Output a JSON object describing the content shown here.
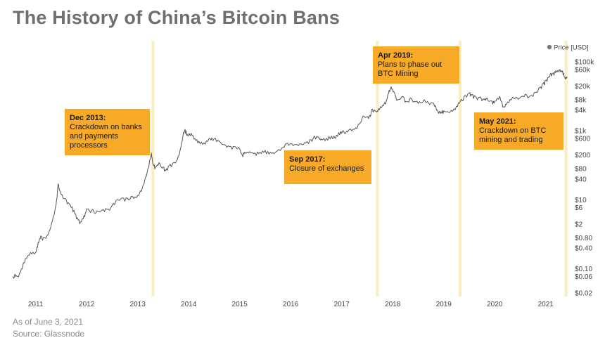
{
  "title": "The History of China’s Bitcoin Bans",
  "footnotes": {
    "as_of": "As of June 3, 2021",
    "source": "Source: Glassnode"
  },
  "colors": {
    "line": "#555555",
    "event_band": "#fbecc2",
    "annotation_bg": "#f7a928",
    "annotation_text": "#1a1a1a",
    "axis_text": "#444444",
    "title": "#6f6f6f",
    "legend_dot": "#777777"
  },
  "chart_data": {
    "type": "line",
    "title": "The History of China’s Bitcoin Bans",
    "xlabel": "",
    "ylabel": "Price [USD]",
    "yscale": "log",
    "xlim": [
      2010.55,
      2021.5
    ],
    "ylim": [
      0.02,
      100000
    ],
    "legend": {
      "label": "Price [USD]",
      "position": "top-right"
    },
    "x_ticks": [
      {
        "value": 2011,
        "label": "2011"
      },
      {
        "value": 2012,
        "label": "2012"
      },
      {
        "value": 2013,
        "label": "2013"
      },
      {
        "value": 2014,
        "label": "2014"
      },
      {
        "value": 2015,
        "label": "2015"
      },
      {
        "value": 2016,
        "label": "2016"
      },
      {
        "value": 2017,
        "label": "2017"
      },
      {
        "value": 2018,
        "label": "2018"
      },
      {
        "value": 2019,
        "label": "2019"
      },
      {
        "value": 2020,
        "label": "2020"
      },
      {
        "value": 2021,
        "label": "2021"
      }
    ],
    "y_ticks": [
      {
        "value": 100000,
        "label": "$100k"
      },
      {
        "value": 60000,
        "label": "$60k"
      },
      {
        "value": 20000,
        "label": "$20k"
      },
      {
        "value": 8000,
        "label": "$8k"
      },
      {
        "value": 4000,
        "label": "$4k"
      },
      {
        "value": 1000,
        "label": "$1k"
      },
      {
        "value": 600,
        "label": "$600"
      },
      {
        "value": 200,
        "label": "$200"
      },
      {
        "value": 80,
        "label": "$80"
      },
      {
        "value": 40,
        "label": "$40"
      },
      {
        "value": 10,
        "label": "$10"
      },
      {
        "value": 6,
        "label": "$6"
      },
      {
        "value": 2,
        "label": "$2"
      },
      {
        "value": 0.8,
        "label": "$0.80"
      },
      {
        "value": 0.4,
        "label": "$0.40"
      },
      {
        "value": 0.1,
        "label": "$0.10"
      },
      {
        "value": 0.06,
        "label": "$0.06"
      },
      {
        "value": 0.02,
        "label": "$0.02"
      }
    ],
    "series": [
      {
        "name": "Price [USD]",
        "points": [
          [
            2010.55,
            0.06
          ],
          [
            2010.6,
            0.07
          ],
          [
            2010.65,
            0.06
          ],
          [
            2010.72,
            0.1
          ],
          [
            2010.8,
            0.2
          ],
          [
            2010.9,
            0.3
          ],
          [
            2011.0,
            0.3
          ],
          [
            2011.05,
            0.6
          ],
          [
            2011.1,
            0.9
          ],
          [
            2011.15,
            0.8
          ],
          [
            2011.25,
            1.0
          ],
          [
            2011.33,
            2.5
          ],
          [
            2011.4,
            7.0
          ],
          [
            2011.44,
            29.0
          ],
          [
            2011.48,
            18.0
          ],
          [
            2011.52,
            14.0
          ],
          [
            2011.6,
            10.0
          ],
          [
            2011.68,
            7.0
          ],
          [
            2011.75,
            5.0
          ],
          [
            2011.82,
            3.0
          ],
          [
            2011.88,
            2.3
          ],
          [
            2011.95,
            3.5
          ],
          [
            2012.0,
            5.5
          ],
          [
            2012.1,
            5.0
          ],
          [
            2012.2,
            4.8
          ],
          [
            2012.3,
            5.0
          ],
          [
            2012.4,
            5.3
          ],
          [
            2012.5,
            6.8
          ],
          [
            2012.6,
            10.0
          ],
          [
            2012.7,
            11.5
          ],
          [
            2012.8,
            11.0
          ],
          [
            2012.9,
            12.5
          ],
          [
            2013.0,
            13.5
          ],
          [
            2013.1,
            25.0
          ],
          [
            2013.2,
            80.0
          ],
          [
            2013.27,
            230.0
          ],
          [
            2013.3,
            110.0
          ],
          [
            2013.35,
            90.0
          ],
          [
            2013.42,
            120.0
          ],
          [
            2013.5,
            90.0
          ],
          [
            2013.55,
            70.0
          ],
          [
            2013.62,
            100.0
          ],
          [
            2013.7,
            120.0
          ],
          [
            2013.78,
            150.0
          ],
          [
            2013.85,
            350.0
          ],
          [
            2013.9,
            900.0
          ],
          [
            2013.93,
            1100.0
          ],
          [
            2013.97,
            800.0
          ],
          [
            2014.05,
            850.0
          ],
          [
            2014.12,
            600.0
          ],
          [
            2014.2,
            500.0
          ],
          [
            2014.3,
            450.0
          ],
          [
            2014.4,
            600.0
          ],
          [
            2014.45,
            620.0
          ],
          [
            2014.5,
            600.0
          ],
          [
            2014.6,
            500.0
          ],
          [
            2014.7,
            400.0
          ],
          [
            2014.8,
            350.0
          ],
          [
            2014.9,
            350.0
          ],
          [
            2015.0,
            300.0
          ],
          [
            2015.05,
            200.0
          ],
          [
            2015.1,
            240.0
          ],
          [
            2015.2,
            250.0
          ],
          [
            2015.3,
            230.0
          ],
          [
            2015.4,
            240.0
          ],
          [
            2015.5,
            270.0
          ],
          [
            2015.6,
            240.0
          ],
          [
            2015.7,
            240.0
          ],
          [
            2015.83,
            320.0
          ],
          [
            2015.92,
            430.0
          ],
          [
            2016.0,
            430.0
          ],
          [
            2016.1,
            400.0
          ],
          [
            2016.2,
            420.0
          ],
          [
            2016.3,
            450.0
          ],
          [
            2016.4,
            550.0
          ],
          [
            2016.47,
            700.0
          ],
          [
            2016.55,
            650.0
          ],
          [
            2016.6,
            580.0
          ],
          [
            2016.7,
            610.0
          ],
          [
            2016.8,
            700.0
          ],
          [
            2016.9,
            750.0
          ],
          [
            2016.98,
            950.0
          ],
          [
            2017.02,
            1000.0
          ],
          [
            2017.08,
            900.0
          ],
          [
            2017.15,
            1100.0
          ],
          [
            2017.25,
            1100.0
          ],
          [
            2017.35,
            1600.0
          ],
          [
            2017.42,
            2700.0
          ],
          [
            2017.5,
            2500.0
          ],
          [
            2017.55,
            2800.0
          ],
          [
            2017.6,
            4300.0
          ],
          [
            2017.68,
            3600.0
          ],
          [
            2017.72,
            4400.0
          ],
          [
            2017.8,
            5500.0
          ],
          [
            2017.88,
            8000.0
          ],
          [
            2017.93,
            15000.0
          ],
          [
            2017.97,
            19000.0
          ],
          [
            2018.02,
            14000.0
          ],
          [
            2018.1,
            8000.0
          ],
          [
            2018.2,
            10000.0
          ],
          [
            2018.28,
            7000.0
          ],
          [
            2018.35,
            9000.0
          ],
          [
            2018.45,
            7000.0
          ],
          [
            2018.55,
            6500.0
          ],
          [
            2018.62,
            8000.0
          ],
          [
            2018.7,
            6500.0
          ],
          [
            2018.8,
            6400.0
          ],
          [
            2018.88,
            4000.0
          ],
          [
            2018.95,
            3600.0
          ],
          [
            2019.0,
            3800.0
          ],
          [
            2019.15,
            3900.0
          ],
          [
            2019.25,
            5200.0
          ],
          [
            2019.33,
            7500.0
          ],
          [
            2019.4,
            10000.0
          ],
          [
            2019.5,
            12500.0
          ],
          [
            2019.55,
            11000.0
          ],
          [
            2019.62,
            10000.0
          ],
          [
            2019.7,
            9500.0
          ],
          [
            2019.8,
            8000.0
          ],
          [
            2019.85,
            9000.0
          ],
          [
            2019.95,
            7200.0
          ],
          [
            2020.0,
            7200.0
          ],
          [
            2020.1,
            10000.0
          ],
          [
            2020.18,
            5000.0
          ],
          [
            2020.25,
            6800.0
          ],
          [
            2020.35,
            9500.0
          ],
          [
            2020.5,
            9200.0
          ],
          [
            2020.6,
            11500.0
          ],
          [
            2020.7,
            10500.0
          ],
          [
            2020.8,
            13000.0
          ],
          [
            2020.88,
            18000.0
          ],
          [
            2020.95,
            23000.0
          ],
          [
            2021.0,
            29000.0
          ],
          [
            2021.05,
            35000.0
          ],
          [
            2021.1,
            47000.0
          ],
          [
            2021.15,
            48000.0
          ],
          [
            2021.2,
            56000.0
          ],
          [
            2021.28,
            60000.0
          ],
          [
            2021.33,
            55000.0
          ],
          [
            2021.37,
            37000.0
          ],
          [
            2021.42,
            37000.0
          ]
        ]
      }
    ],
    "events": [
      {
        "x": 2013.3,
        "lines": [
          "Dec 2013:",
          "Crackdown on banks",
          "and payments",
          "processors"
        ],
        "side": "left",
        "level": "upper"
      },
      {
        "x": 2017.7,
        "lines": [
          "Sep 2017:",
          "Closure of exchanges"
        ],
        "side": "left",
        "level": "lower"
      },
      {
        "x": 2019.32,
        "lines": [
          "Apr 2019:",
          "Plans to phase out",
          "BTC Mining"
        ],
        "side": "left",
        "level": "top"
      },
      {
        "x": 2021.4,
        "lines": [
          "May 2021:",
          "Crackdown on BTC",
          "mining and trading"
        ],
        "side": "left",
        "level": "middle"
      }
    ]
  }
}
